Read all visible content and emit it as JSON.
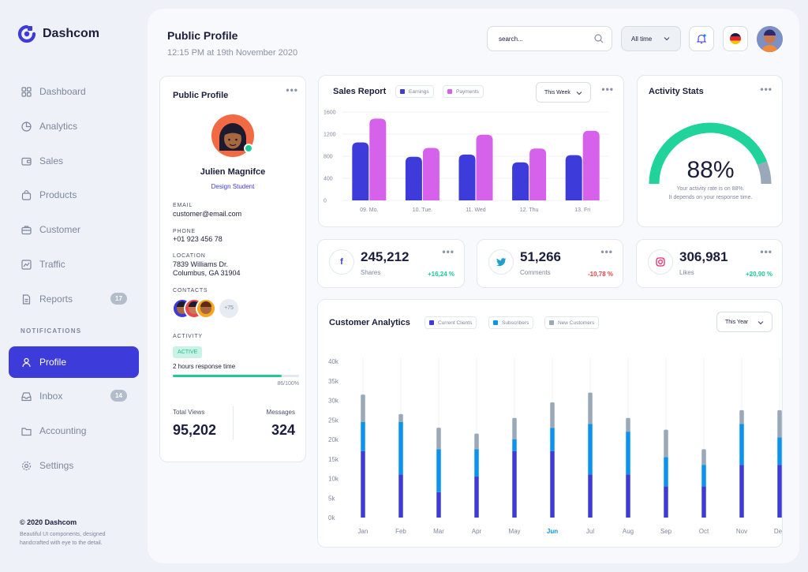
{
  "brand": {
    "name": "Dashcom"
  },
  "sidebar": {
    "items": [
      {
        "label": "Dashboard"
      },
      {
        "label": "Analytics"
      },
      {
        "label": "Sales"
      },
      {
        "label": "Products"
      },
      {
        "label": "Customer"
      },
      {
        "label": "Traffic"
      },
      {
        "label": "Reports",
        "badge": "17"
      },
      {
        "label": "Profile"
      },
      {
        "label": "Inbox",
        "badge": "14"
      },
      {
        "label": "Accounting"
      },
      {
        "label": "Settings"
      }
    ],
    "section_label": "NOTIFICATIONS",
    "copyright": "© 2020 Dashcom",
    "copyright_sub": "Beautiful UI components, designed handcrafted with eye to the detail."
  },
  "header": {
    "title": "Public Profile",
    "subtitle": "12:15 PM at 19th November 2020",
    "search_value": "search...",
    "range_value": "All time"
  },
  "colors": {
    "primary": "#3d3bd9",
    "pink": "#d661ea",
    "blue": "#0b93f0",
    "gray": "#9aa9ba",
    "green": "#20c997",
    "red": "#e5484d"
  },
  "profile": {
    "title": "Public Profile",
    "name": "Julien Magnifce",
    "role": "Design Student",
    "email_label": "EMAIL",
    "email": "customer@email.com",
    "phone_label": "PHONE",
    "phone": "+01 923 456 78",
    "location_label": "LOCATION",
    "location_line1": "7839 Williams Dr.",
    "location_line2": "Columbus, GA 31904",
    "contacts_label": "CONTACTS",
    "contacts_more": "+75",
    "activity_label": "ACTIVITY",
    "activity_status": "ACTIVE",
    "response_time": "2 hours response time",
    "progress_text": "86/100%",
    "progress_value": 86,
    "total_views_label": "Total Views",
    "total_views": "95,202",
    "messages_label": "Messages",
    "messages": "324"
  },
  "sales_report": {
    "title": "Sales Report",
    "legend_earnings": "Earnings",
    "legend_payments": "Payments",
    "period": "This Week"
  },
  "activity_stats": {
    "title": "Activity Stats",
    "percent_text": "88%",
    "percent": 88,
    "line1": "Your activity rate is on 88%.",
    "line2": "It depends on your response time."
  },
  "stats": [
    {
      "icon": "f",
      "value": "245,212",
      "label": "Shares",
      "change": "+16,24 %",
      "change_color": "#20c997",
      "icon_color": "#3d3bd9"
    },
    {
      "icon": "t",
      "value": "51,266",
      "label": "Comments",
      "change": "-10,78 %",
      "change_color": "#e5484d",
      "icon_color": "#1da1c8"
    },
    {
      "icon": "ig",
      "value": "306,981",
      "label": "Likes",
      "change": "+20,90 %",
      "change_color": "#20c997",
      "icon_color": "#e1306c"
    }
  ],
  "customer_analytics": {
    "title": "Customer Analytics",
    "legend_current": "Current Clients",
    "legend_subscribers": "Subscribers",
    "legend_new": "New Customers",
    "period": "This Year"
  },
  "chart_data": [
    {
      "type": "bar",
      "title": "Sales Report",
      "categories": [
        "09. Mo.",
        "10. Tue.",
        "11. Wed",
        "12. Thu",
        "13. Fri"
      ],
      "series": [
        {
          "name": "Earnings",
          "values": [
            1050,
            790,
            830,
            690,
            820
          ]
        },
        {
          "name": "Payments",
          "values": [
            1480,
            950,
            1190,
            940,
            1260
          ]
        }
      ],
      "yticks": [
        "0",
        "400",
        "800",
        "1200",
        "1600"
      ],
      "ylim": [
        0,
        1600
      ]
    },
    {
      "type": "bar",
      "title": "Customer Analytics",
      "stacked": true,
      "categories": [
        "Jan",
        "Feb",
        "Mar",
        "Apr",
        "May",
        "Jun",
        "Jul",
        "Aug",
        "Sep",
        "Oct",
        "Nov",
        "Dec"
      ],
      "highlight": "Jun",
      "series": [
        {
          "name": "Current Clients",
          "values": [
            17000,
            11000,
            6500,
            10500,
            17000,
            17000,
            11000,
            11000,
            8000,
            8000,
            13500,
            13500
          ]
        },
        {
          "name": "Subscribers",
          "values": [
            7500,
            13500,
            11000,
            7000,
            3000,
            6000,
            13000,
            11000,
            7500,
            5500,
            10500,
            7000
          ]
        },
        {
          "name": "New Customers",
          "values": [
            7000,
            2000,
            5500,
            4000,
            5500,
            6500,
            8000,
            3500,
            7000,
            4000,
            3500,
            7000
          ]
        }
      ],
      "yticks": [
        "0k",
        "5k",
        "10k",
        "15k",
        "20k",
        "25k",
        "30k",
        "35k",
        "40k"
      ],
      "ylim": [
        0,
        40000
      ]
    }
  ]
}
